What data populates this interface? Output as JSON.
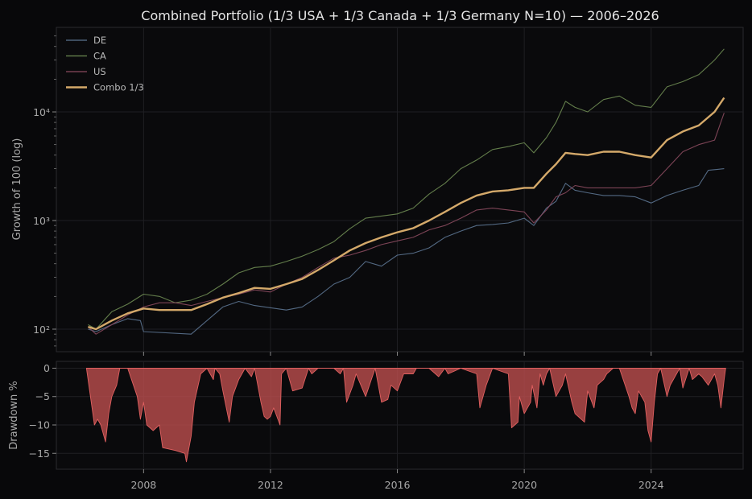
{
  "chart_data": [
    {
      "type": "line",
      "title": "Combined Portfolio (1/3 USA + 1/3 Canada + 1/3 Germany N=10) — 2006–2026",
      "ylabel": "Growth of 100 (log)",
      "yscale": "log",
      "ylim": [
        62,
        60000
      ],
      "xlim": [
        2005.25,
        2026.9
      ],
      "x_ticks": [
        2008,
        2012,
        2016,
        2020,
        2024
      ],
      "y_ticks": [
        {
          "value": 100,
          "label": "10²"
        },
        {
          "value": 1000,
          "label": "10³"
        },
        {
          "value": 10000,
          "label": "10⁴"
        }
      ],
      "legend_position": "top-left",
      "grid": true,
      "series": [
        {
          "name": "DE",
          "color": "#5b7390",
          "x": [
            2006.25,
            2006.5,
            2007.0,
            2007.5,
            2007.9,
            2008.0,
            2009.5,
            2010.0,
            2010.5,
            2011.0,
            2011.5,
            2012.5,
            2013.0,
            2013.5,
            2014.0,
            2014.5,
            2015.0,
            2015.5,
            2016.0,
            2016.5,
            2017.0,
            2017.5,
            2018.0,
            2018.5,
            2019.0,
            2019.5,
            2020.0,
            2020.3,
            2020.7,
            2021.0,
            2021.3,
            2021.6,
            2022.0,
            2022.5,
            2023.0,
            2023.5,
            2024.0,
            2024.5,
            2025.0,
            2025.5,
            2025.8,
            2026.3
          ],
          "values": [
            100,
            95,
            110,
            125,
            120,
            95,
            90,
            120,
            160,
            180,
            165,
            150,
            160,
            200,
            260,
            300,
            420,
            380,
            480,
            500,
            560,
            700,
            800,
            900,
            920,
            950,
            1050,
            900,
            1300,
            1500,
            2200,
            1900,
            1800,
            1700,
            1700,
            1650,
            1450,
            1700,
            1900,
            2100,
            2900,
            3000
          ]
        },
        {
          "name": "CA",
          "color": "#6d8a52",
          "x": [
            2006.25,
            2006.5,
            2007.0,
            2007.5,
            2008.0,
            2008.5,
            2009.0,
            2009.5,
            2010.0,
            2010.5,
            2011.0,
            2011.5,
            2012.0,
            2012.5,
            2013.0,
            2013.5,
            2014.0,
            2014.5,
            2015.0,
            2015.5,
            2016.0,
            2016.5,
            2017.0,
            2017.5,
            2018.0,
            2018.5,
            2019.0,
            2019.5,
            2020.0,
            2020.3,
            2020.7,
            2021.0,
            2021.3,
            2021.6,
            2022.0,
            2022.5,
            2023.0,
            2023.5,
            2024.0,
            2024.5,
            2025.0,
            2025.5,
            2026.0,
            2026.3
          ],
          "values": [
            110,
            100,
            145,
            170,
            210,
            200,
            175,
            185,
            210,
            260,
            330,
            370,
            380,
            420,
            470,
            540,
            640,
            840,
            1050,
            1100,
            1150,
            1300,
            1750,
            2200,
            3000,
            3600,
            4500,
            4800,
            5200,
            4200,
            5800,
            8000,
            12500,
            11000,
            10000,
            13000,
            14000,
            11500,
            11000,
            17000,
            19000,
            22000,
            30000,
            38000
          ]
        },
        {
          "name": "US",
          "color": "#8a4a5e",
          "x": [
            2006.25,
            2006.5,
            2007.0,
            2007.5,
            2008.0,
            2008.5,
            2009.0,
            2009.5,
            2010.0,
            2010.5,
            2011.0,
            2011.5,
            2012.0,
            2012.5,
            2013.0,
            2013.5,
            2014.0,
            2014.5,
            2015.0,
            2015.5,
            2016.0,
            2016.5,
            2017.0,
            2017.5,
            2018.0,
            2018.5,
            2019.0,
            2019.5,
            2020.0,
            2020.3,
            2020.7,
            2021.0,
            2021.3,
            2021.6,
            2022.0,
            2022.5,
            2023.0,
            2023.5,
            2024.0,
            2024.5,
            2025.0,
            2025.5,
            2026.0,
            2026.3
          ],
          "values": [
            105,
            90,
            110,
            135,
            160,
            175,
            175,
            165,
            180,
            195,
            210,
            230,
            220,
            260,
            300,
            370,
            450,
            480,
            530,
            600,
            650,
            700,
            820,
            900,
            1050,
            1250,
            1300,
            1250,
            1200,
            950,
            1250,
            1650,
            1800,
            2100,
            2000,
            2000,
            2000,
            2000,
            2100,
            3000,
            4300,
            5000,
            5500,
            9800
          ]
        },
        {
          "name": "Combo 1/3",
          "color": "#d4a96a",
          "x": [
            2006.25,
            2006.5,
            2007.0,
            2007.5,
            2008.0,
            2008.5,
            2009.0,
            2009.5,
            2010.0,
            2010.5,
            2011.0,
            2011.5,
            2012.0,
            2012.5,
            2013.0,
            2013.5,
            2014.0,
            2014.5,
            2015.0,
            2015.5,
            2016.0,
            2016.5,
            2017.0,
            2017.5,
            2018.0,
            2018.5,
            2019.0,
            2019.5,
            2020.0,
            2020.3,
            2020.7,
            2021.0,
            2021.3,
            2021.6,
            2022.0,
            2022.5,
            2023.0,
            2023.5,
            2024.0,
            2024.5,
            2025.0,
            2025.5,
            2026.0,
            2026.3
          ],
          "values": [
            105,
            100,
            120,
            140,
            155,
            150,
            150,
            150,
            170,
            195,
            215,
            240,
            235,
            260,
            290,
            350,
            430,
            530,
            620,
            700,
            780,
            850,
            1000,
            1200,
            1450,
            1700,
            1850,
            1900,
            2000,
            2000,
            2700,
            3300,
            4200,
            4100,
            4000,
            4300,
            4300,
            4000,
            3800,
            5500,
            6600,
            7500,
            10000,
            13500
          ]
        }
      ]
    },
    {
      "type": "area",
      "ylabel": "Drawdown %",
      "ylim": [
        -17.8,
        1.2
      ],
      "xlim": [
        2005.25,
        2026.9
      ],
      "x_ticks": [
        2008,
        2012,
        2016,
        2020,
        2024
      ],
      "y_ticks": [
        {
          "value": 0,
          "label": "0"
        },
        {
          "value": -5,
          "label": "−5"
        },
        {
          "value": -10,
          "label": "−10"
        },
        {
          "value": -15,
          "label": "−15"
        }
      ],
      "grid": true,
      "series": [
        {
          "name": "",
          "color": "#c05050",
          "x": [
            2006.2,
            2006.45,
            2006.55,
            2006.65,
            2006.8,
            2006.9,
            2007.0,
            2007.15,
            2007.25,
            2007.5,
            2007.8,
            2007.9,
            2008.0,
            2008.1,
            2008.3,
            2008.5,
            2008.6,
            2009.0,
            2009.3,
            2009.35,
            2009.5,
            2009.6,
            2009.8,
            2010.0,
            2010.2,
            2010.25,
            2010.4,
            2010.5,
            2010.7,
            2010.8,
            2011.0,
            2011.2,
            2011.4,
            2011.5,
            2011.7,
            2011.8,
            2011.9,
            2012.0,
            2012.1,
            2012.3,
            2012.35,
            2012.5,
            2012.7,
            2013.0,
            2013.2,
            2013.3,
            2013.5,
            2014.0,
            2014.2,
            2014.3,
            2014.4,
            2014.6,
            2014.7,
            2015.0,
            2015.3,
            2015.5,
            2015.7,
            2015.8,
            2016.0,
            2016.2,
            2016.5,
            2016.6,
            2017.0,
            2017.3,
            2017.5,
            2017.6,
            2017.8,
            2018.0,
            2018.5,
            2018.6,
            2018.8,
            2019.0,
            2019.5,
            2019.6,
            2019.8,
            2019.85,
            2020.0,
            2020.1,
            2020.2,
            2020.25,
            2020.4,
            2020.5,
            2020.6,
            2020.7,
            2020.8,
            2021.0,
            2021.2,
            2021.3,
            2021.5,
            2021.6,
            2021.9,
            2022.0,
            2022.2,
            2022.3,
            2022.5,
            2022.6,
            2022.8,
            2023.0,
            2023.3,
            2023.4,
            2023.5,
            2023.6,
            2023.7,
            2023.8,
            2023.9,
            2024.0,
            2024.1,
            2024.2,
            2024.3,
            2024.5,
            2024.6,
            2024.8,
            2024.9,
            2025.0,
            2025.2,
            2025.3,
            2025.5,
            2025.6,
            2025.8,
            2026.0,
            2026.1,
            2026.2,
            2026.3,
            2026.35
          ],
          "values": [
            0,
            -10,
            -9,
            -10,
            -13,
            -8,
            -5,
            -3,
            0,
            0,
            -5,
            -9,
            -6,
            -10,
            -11,
            -10,
            -14,
            -14.5,
            -15,
            -16.5,
            -12,
            -6,
            -1,
            0,
            -2,
            0,
            -1,
            -4,
            -9.5,
            -5,
            -2,
            0,
            -1.5,
            0,
            -6,
            -8.5,
            -9,
            -8.5,
            -7,
            -10,
            -1,
            0,
            -4,
            -3.5,
            0,
            -1,
            0,
            0,
            -1,
            0,
            -6,
            -3,
            -1,
            -5,
            0,
            -6,
            -5.5,
            -3,
            -4,
            -1,
            -1,
            0,
            0,
            -1.5,
            0,
            -1,
            -0.5,
            0,
            -1,
            -7,
            -3,
            0,
            -1,
            -10.5,
            -9.5,
            -5,
            -8,
            -7,
            -6,
            -3,
            -7,
            -1,
            -3,
            -1,
            0,
            -5,
            -3,
            -1,
            -6,
            -8,
            -9.5,
            -4,
            -7,
            -3,
            -2,
            -1,
            0,
            0,
            -5,
            -7,
            -8,
            -4,
            -5,
            -6,
            -11,
            -13,
            -6,
            -1,
            0,
            -5,
            -3,
            -1,
            0,
            -3.5,
            0,
            -2,
            -1,
            -1.5,
            -3,
            -1,
            -3,
            -7,
            -2,
            0
          ]
        }
      ]
    }
  ]
}
